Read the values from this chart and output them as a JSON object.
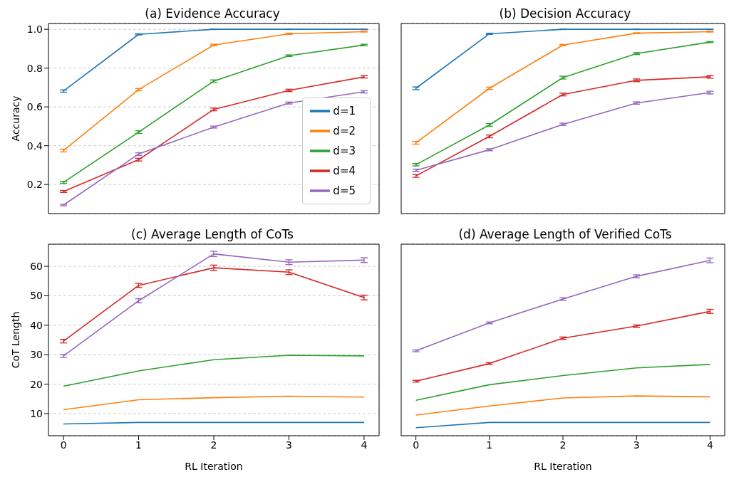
{
  "chart_data": [
    {
      "type": "line",
      "title": "(a) Evidence Accuracy",
      "ylabel": "Accuracy",
      "x": [
        0,
        1,
        2,
        3,
        4
      ],
      "xlim": [
        -0.2,
        4.2
      ],
      "xticks": [
        0,
        1,
        2,
        3,
        4
      ],
      "ylim": [
        0.05,
        1.03
      ],
      "yticks": [
        0.2,
        0.4,
        0.6,
        0.8,
        {
          "value": 1,
          "label": "1.0"
        }
      ],
      "grid": "y",
      "legend": "right",
      "tick_labels": "y",
      "series": [
        {
          "name": "d=1",
          "color": "#1f77b4",
          "values": [
            0.682,
            0.974,
            1.0,
            1.0,
            1.0
          ],
          "errors": [
            0.006,
            0.003,
            0.001,
            0.001,
            0.001
          ]
        },
        {
          "name": "d=2",
          "color": "#ff7f0e",
          "values": [
            0.375,
            0.689,
            0.919,
            0.977,
            0.988
          ],
          "errors": [
            0.007,
            0.006,
            0.004,
            0.003,
            0.002
          ]
        },
        {
          "name": "d=3",
          "color": "#2ca02c",
          "values": [
            0.211,
            0.47,
            0.733,
            0.864,
            0.919
          ],
          "errors": [
            0.005,
            0.007,
            0.006,
            0.004,
            0.004
          ]
        },
        {
          "name": "d=4",
          "color": "#d62728",
          "values": [
            0.164,
            0.328,
            0.587,
            0.685,
            0.755
          ],
          "errors": [
            0.005,
            0.007,
            0.007,
            0.006,
            0.006
          ]
        },
        {
          "name": "d=5",
          "color": "#9467bd",
          "values": [
            0.094,
            0.357,
            0.496,
            0.62,
            0.678
          ],
          "errors": [
            0.004,
            0.007,
            0.005,
            0.005,
            0.006
          ]
        }
      ]
    },
    {
      "type": "line",
      "title": "(b) Decision Accuracy",
      "x": [
        0,
        1,
        2,
        3,
        4
      ],
      "xlim": [
        -0.2,
        4.2
      ],
      "xticks": [
        0,
        1,
        2,
        3,
        4
      ],
      "ylim": [
        0.05,
        1.03
      ],
      "yticks": [
        0.2,
        0.4,
        0.6,
        0.8,
        1
      ],
      "grid": "y",
      "tick_labels": false,
      "series": [
        {
          "color": "#1f77b4",
          "values": [
            0.696,
            0.977,
            1.0,
            1.0,
            1.0
          ],
          "errors": [
            0.007,
            0.003,
            0.001,
            0.001,
            0.001
          ]
        },
        {
          "color": "#ff7f0e",
          "values": [
            0.415,
            0.696,
            0.919,
            0.98,
            0.988
          ],
          "errors": [
            0.007,
            0.006,
            0.003,
            0.002,
            0.002
          ]
        },
        {
          "color": "#2ca02c",
          "values": [
            0.302,
            0.507,
            0.751,
            0.875,
            0.934
          ],
          "errors": [
            0.006,
            0.007,
            0.007,
            0.005,
            0.003
          ]
        },
        {
          "color": "#d62728",
          "values": [
            0.244,
            0.448,
            0.664,
            0.737,
            0.755
          ],
          "errors": [
            0.007,
            0.007,
            0.007,
            0.007,
            0.007
          ]
        },
        {
          "color": "#9467bd",
          "values": [
            0.273,
            0.379,
            0.51,
            0.62,
            0.674
          ],
          "errors": [
            0.006,
            0.005,
            0.006,
            0.006,
            0.007
          ]
        }
      ]
    },
    {
      "type": "line",
      "title": "(c) Average Length of CoTs",
      "xlabel": "RL Iteration",
      "ylabel": "CoT Length",
      "x": [
        0,
        1,
        2,
        3,
        4
      ],
      "xlim": [
        -0.2,
        4.2
      ],
      "xticks": [
        0,
        1,
        2,
        3,
        4
      ],
      "ylim": [
        2.5,
        67.5
      ],
      "yticks": [
        10,
        20,
        30,
        40,
        50,
        60
      ],
      "grid": "y",
      "series": [
        {
          "color": "#1f77b4",
          "values": [
            6.5,
            7.0,
            7.0,
            7.0,
            7.0
          ]
        },
        {
          "color": "#ff7f0e",
          "values": [
            11.3,
            14.7,
            15.4,
            15.9,
            15.6
          ]
        },
        {
          "color": "#2ca02c",
          "values": [
            19.3,
            24.5,
            28.3,
            29.8,
            29.6
          ]
        },
        {
          "color": "#d62728",
          "values": [
            34.6,
            53.5,
            59.5,
            58.0,
            49.4
          ],
          "errors": [
            0.6,
            0.7,
            0.9,
            0.8,
            0.8
          ]
        },
        {
          "color": "#9467bd",
          "values": [
            29.6,
            48.3,
            64.2,
            61.4,
            62.1
          ],
          "errors": [
            0.5,
            0.7,
            0.9,
            0.8,
            0.8
          ]
        }
      ]
    },
    {
      "type": "line",
      "title": "(d) Average Length of Verified CoTs",
      "xlabel": "RL Iteration",
      "x": [
        0,
        1,
        2,
        3,
        4
      ],
      "xlim": [
        -0.2,
        4.2
      ],
      "xticks": [
        0,
        1,
        2,
        3,
        4
      ],
      "ylim": [
        2.5,
        67.5
      ],
      "yticks": [
        10,
        20,
        30,
        40,
        50,
        60
      ],
      "grid": "y",
      "tick_labels": "x",
      "series": [
        {
          "color": "#1f77b4",
          "values": [
            5.2,
            7.0,
            7.0,
            7.0,
            7.0
          ]
        },
        {
          "color": "#ff7f0e",
          "values": [
            9.5,
            12.6,
            15.3,
            16.0,
            15.7
          ]
        },
        {
          "color": "#2ca02c",
          "values": [
            14.5,
            19.8,
            22.9,
            25.5,
            26.7
          ]
        },
        {
          "color": "#d62728",
          "values": [
            21.0,
            27.0,
            35.6,
            39.7,
            44.7
          ],
          "errors": [
            0.3,
            0.3,
            0.4,
            0.4,
            0.7
          ]
        },
        {
          "color": "#9467bd",
          "values": [
            31.3,
            40.8,
            48.9,
            56.6,
            62.0
          ],
          "errors": [
            0.3,
            0.3,
            0.4,
            0.5,
            0.8
          ]
        }
      ]
    }
  ]
}
